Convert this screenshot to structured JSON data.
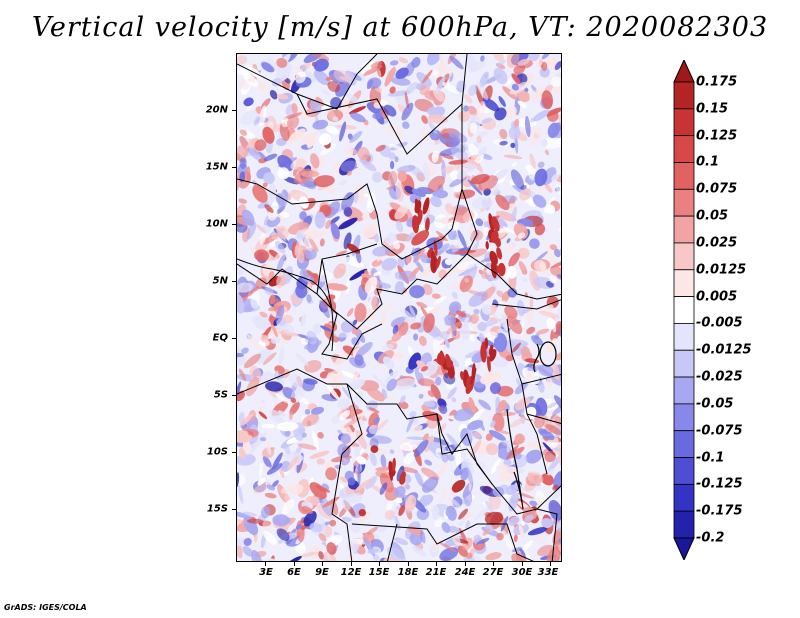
{
  "title": "Vertical velocity [m/s] at 600hPa, VT: 2020082303",
  "credit": "GrADS: IGES/COLA",
  "map": {
    "lat_labels": [
      "20N",
      "15N",
      "10N",
      "5N",
      "EQ",
      "5S",
      "10S",
      "15S"
    ],
    "lon_labels": [
      "3E",
      "6E",
      "9E",
      "12E",
      "15E",
      "18E",
      "21E",
      "24E",
      "27E",
      "30E",
      "33E"
    ],
    "pattern_seed": 2020082303
  },
  "colorbar": {
    "levels": [
      "0.175",
      "0.15",
      "0.125",
      "0.1",
      "0.075",
      "0.05",
      "0.025",
      "0.0125",
      "0.005",
      "-0.005",
      "-0.0125",
      "-0.025",
      "-0.05",
      "-0.075",
      "-0.1",
      "-0.125",
      "-0.175",
      "-0.2"
    ],
    "colors": [
      "#a01818",
      "#b42424",
      "#c83434",
      "#d84848",
      "#e26262",
      "#ea8080",
      "#f2a4a4",
      "#f8c8c8",
      "#fce6e6",
      "#ffffff",
      "#e4e4fc",
      "#c8c8f8",
      "#a8a8f2",
      "#8888ea",
      "#6a6ae0",
      "#4e4ed4",
      "#3434c4",
      "#2222ac",
      "#18189a"
    ]
  }
}
